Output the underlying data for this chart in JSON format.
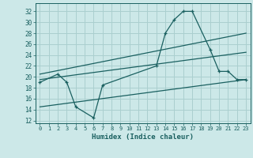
{
  "xlabel": "Humidex (Indice chaleur)",
  "xlim": [
    -0.5,
    23.5
  ],
  "ylim": [
    11.5,
    33.5
  ],
  "yticks": [
    12,
    14,
    16,
    18,
    20,
    22,
    24,
    26,
    28,
    30,
    32
  ],
  "xticks": [
    0,
    1,
    2,
    3,
    4,
    5,
    6,
    7,
    8,
    9,
    10,
    11,
    12,
    13,
    14,
    15,
    16,
    17,
    18,
    19,
    20,
    21,
    22,
    23
  ],
  "bg_color": "#cce8e8",
  "grid_color": "#aacfcf",
  "line_color": "#1a6060",
  "line1_x": [
    0,
    2,
    3,
    4,
    6,
    7,
    13,
    14,
    15,
    16,
    17,
    19,
    20,
    21,
    22,
    23
  ],
  "line1_y": [
    19,
    20.5,
    19,
    14.5,
    12.5,
    18.5,
    22,
    28,
    30.5,
    32,
    32,
    25,
    21,
    21,
    19.5,
    19.5
  ],
  "line2_x": [
    0,
    23
  ],
  "line2_y": [
    19.5,
    24.5
  ],
  "line3_x": [
    0,
    23
  ],
  "line3_y": [
    20.5,
    28
  ],
  "line4_x": [
    0,
    23
  ],
  "line4_y": [
    14.5,
    19.5
  ]
}
